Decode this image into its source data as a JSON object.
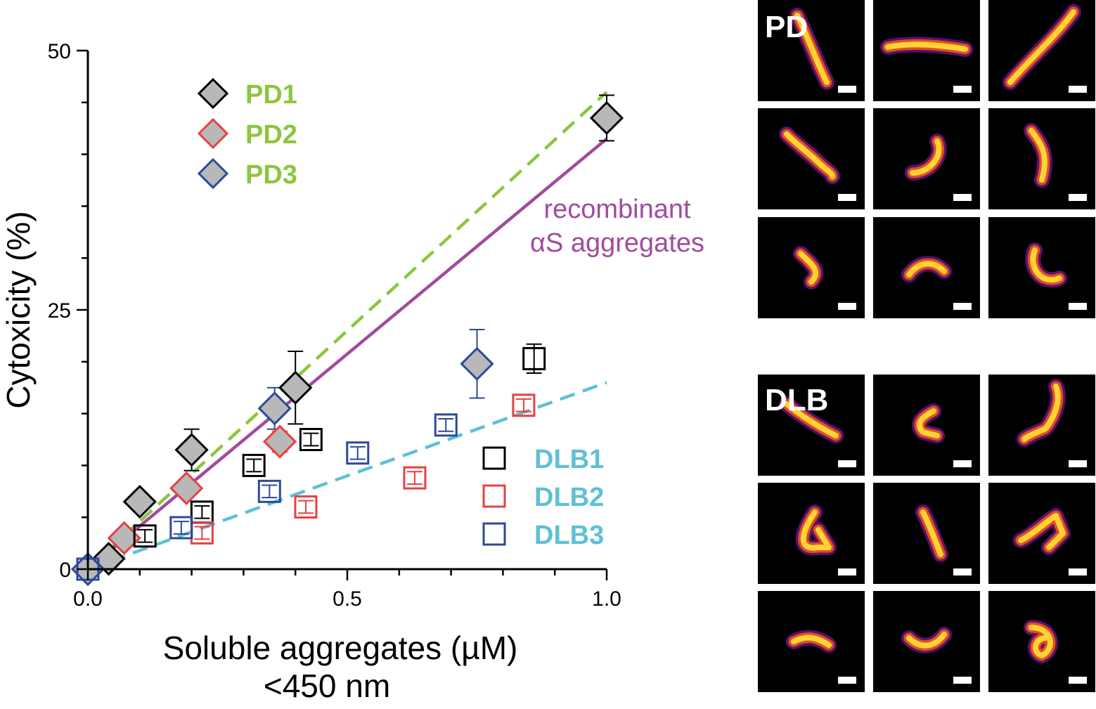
{
  "chart_data": {
    "type": "scatter",
    "xlabel": "Soluble aggregates (µM)",
    "xlabel_line2": "<450 nm",
    "ylabel": "Cytoxicity (%)",
    "xlim": [
      0,
      1.0
    ],
    "ylim": [
      0,
      50
    ],
    "xticks": [
      "0.0",
      "0.5",
      "1.0"
    ],
    "yticks": [
      "0",
      "25",
      "50"
    ],
    "legend_pd_placement": "top-left",
    "legend_dlb_placement": "bottom-right",
    "series": [
      {
        "name": "PD1",
        "marker": "diamond",
        "filled": true,
        "color": "#000000",
        "fill": "#b8b8b8",
        "points": [
          {
            "x": 0.04,
            "y": 1,
            "err": 0
          },
          {
            "x": 0.1,
            "y": 6.5,
            "err": 0
          },
          {
            "x": 0.2,
            "y": 11.5,
            "err": 2
          },
          {
            "x": 0.4,
            "y": 17.5,
            "err": 3.5
          },
          {
            "x": 1.0,
            "y": 43.5,
            "err": 2.2
          }
        ]
      },
      {
        "name": "PD2",
        "marker": "diamond",
        "filled": true,
        "color": "#e84040",
        "fill": "#b8b8b8",
        "points": [
          {
            "x": 0.07,
            "y": 3,
            "err": 0
          },
          {
            "x": 0.19,
            "y": 7.8,
            "err": 0
          },
          {
            "x": 0.37,
            "y": 12.3,
            "err": 1
          }
        ]
      },
      {
        "name": "PD3",
        "marker": "diamond",
        "filled": true,
        "color": "#2a4a9a",
        "fill": "#b8b8b8",
        "points": [
          {
            "x": 0.0,
            "y": 0,
            "err": 0
          },
          {
            "x": 0.36,
            "y": 15.5,
            "err": 2
          },
          {
            "x": 0.75,
            "y": 19.8,
            "err": 3.3
          }
        ]
      },
      {
        "name": "DLB1",
        "marker": "square",
        "filled": false,
        "color": "#000000",
        "points": [
          {
            "x": 0.11,
            "y": 3.2,
            "err": 0.6
          },
          {
            "x": 0.22,
            "y": 5.5,
            "err": 0.6
          },
          {
            "x": 0.32,
            "y": 10,
            "err": 0.6
          },
          {
            "x": 0.43,
            "y": 12.5,
            "err": 0.6
          },
          {
            "x": 0.86,
            "y": 20.3,
            "err": 1.4
          }
        ]
      },
      {
        "name": "DLB2",
        "marker": "square",
        "filled": false,
        "color": "#e84040",
        "points": [
          {
            "x": 0.22,
            "y": 3.5,
            "err": 0.6
          },
          {
            "x": 0.42,
            "y": 6,
            "err": 0.6
          },
          {
            "x": 0.63,
            "y": 8.8,
            "err": 0.6
          },
          {
            "x": 0.84,
            "y": 15.8,
            "err": 0.6
          }
        ]
      },
      {
        "name": "DLB3",
        "marker": "square",
        "filled": false,
        "color": "#2a4a9a",
        "points": [
          {
            "x": 0.0,
            "y": 0,
            "err": 0.5
          },
          {
            "x": 0.18,
            "y": 4,
            "err": 0.6
          },
          {
            "x": 0.35,
            "y": 7.5,
            "err": 0.6
          },
          {
            "x": 0.52,
            "y": 11.2,
            "err": 0.6
          },
          {
            "x": 0.69,
            "y": 13.9,
            "err": 0.6
          }
        ]
      }
    ],
    "fit_lines": [
      {
        "color": "#8cc63f",
        "style": "dashed",
        "x0": 0,
        "y0": 0,
        "x1": 1.0,
        "y1": 46
      },
      {
        "color": "#a24a9e",
        "style": "solid",
        "x0": 0,
        "y0": 0,
        "x1": 1.0,
        "y1": 41.5
      },
      {
        "color": "#5fc0d6",
        "style": "dashed",
        "x0": 0,
        "y0": 0,
        "x1": 1.0,
        "y1": 18
      }
    ],
    "annotation_lines": [
      "recombinant",
      "αS aggregates"
    ],
    "annotation_color": "#a24a9e",
    "legend_text_colors": {
      "pd": "#8cc63f",
      "dlb": "#5fc0d6"
    }
  },
  "panels": {
    "pd_label": "PD",
    "dlb_label": "DLB"
  }
}
